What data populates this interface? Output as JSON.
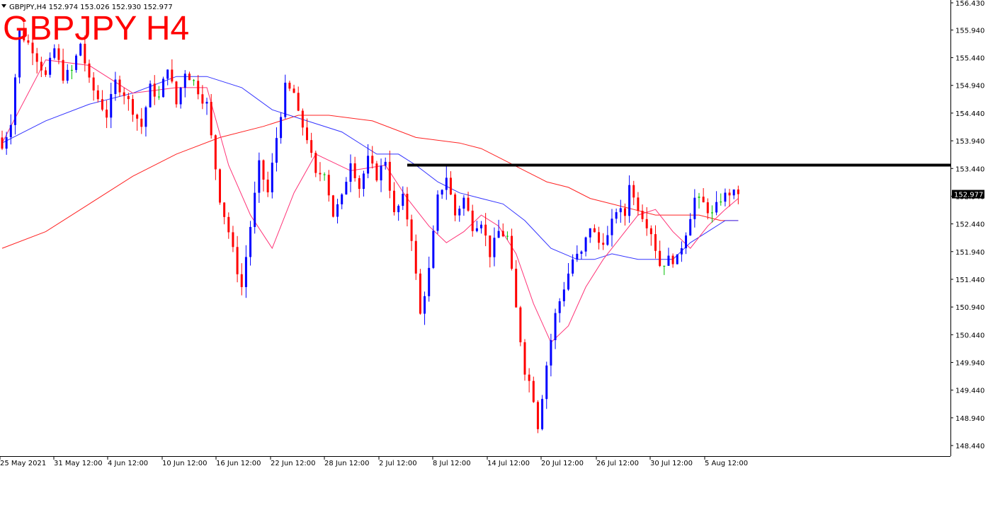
{
  "header": {
    "info_line": "GBPJPY,H4  152.974 153.026 152.930 152.977",
    "big_title": "GBPJPY H4"
  },
  "chart_data": {
    "type": "candlestick",
    "symbol": "GBPJPY",
    "timeframe": "H4",
    "ohlc_header": {
      "open": 152.974,
      "high": 153.026,
      "low": 152.93,
      "close": 152.977
    },
    "current_price": "152.977",
    "ylim": [
      148.3,
      156.43
    ],
    "y_ticks": [
      "156.430",
      "155.940",
      "155.440",
      "154.940",
      "154.440",
      "153.940",
      "153.440",
      "152.940",
      "152.440",
      "151.940",
      "151.440",
      "150.940",
      "150.440",
      "149.940",
      "149.440",
      "148.940",
      "148.440"
    ],
    "x_ticks": [
      "25 May 2021",
      "31 May 12:00",
      "4 Jun 12:00",
      "10 Jun 12:00",
      "16 Jun 12:00",
      "22 Jun 12:00",
      "28 Jun 12:00",
      "2 Jul 12:00",
      "8 Jul 12:00",
      "14 Jul 12:00",
      "20 Jul 12:00",
      "26 Jul 12:00",
      "30 Jul 12:00",
      "5 Aug 12:00"
    ],
    "resistance_level": 153.5,
    "colors": {
      "bull": "#0000ff",
      "bear": "#ff0000",
      "doji": "#00c000",
      "ma_fast": "#ff3377",
      "ma_mid": "#3333ff",
      "ma_slow": "#ff2222",
      "level": "#000000"
    },
    "price_path": [
      [
        0,
        154.0
      ],
      [
        1,
        153.8
      ],
      [
        3,
        154.3
      ],
      [
        5,
        155.9
      ],
      [
        8,
        155.6
      ],
      [
        11,
        155.1
      ],
      [
        13,
        155.6
      ],
      [
        15,
        155.1
      ],
      [
        17,
        155.2
      ],
      [
        19,
        155.7
      ],
      [
        21,
        155.0
      ],
      [
        23,
        154.7
      ],
      [
        25,
        154.4
      ],
      [
        27,
        155.0
      ],
      [
        29,
        154.8
      ],
      [
        31,
        154.5
      ],
      [
        33,
        154.2
      ],
      [
        35,
        154.9
      ],
      [
        37,
        154.7
      ],
      [
        39,
        155.3
      ],
      [
        41,
        154.6
      ],
      [
        43,
        155.2
      ],
      [
        45,
        155.0
      ],
      [
        47,
        154.7
      ],
      [
        48,
        154.6
      ],
      [
        49,
        154.0
      ],
      [
        51,
        152.9
      ],
      [
        53,
        152.3
      ],
      [
        55,
        151.6
      ],
      [
        56,
        151.3
      ],
      [
        58,
        152.4
      ],
      [
        60,
        153.5
      ],
      [
        62,
        153.0
      ],
      [
        64,
        154.0
      ],
      [
        66,
        154.9
      ],
      [
        68,
        154.8
      ],
      [
        69,
        154.4
      ],
      [
        71,
        154.0
      ],
      [
        73,
        153.3
      ],
      [
        75,
        153.4
      ],
      [
        77,
        152.6
      ],
      [
        79,
        152.9
      ],
      [
        81,
        153.6
      ],
      [
        83,
        153.1
      ],
      [
        85,
        153.6
      ],
      [
        87,
        153.3
      ],
      [
        89,
        153.6
      ],
      [
        91,
        152.6
      ],
      [
        93,
        152.9
      ],
      [
        95,
        152.2
      ],
      [
        97,
        150.8
      ],
      [
        99,
        151.6
      ],
      [
        101,
        152.9
      ],
      [
        103,
        153.3
      ],
      [
        105,
        152.6
      ],
      [
        107,
        152.9
      ],
      [
        109,
        152.4
      ],
      [
        111,
        152.5
      ],
      [
        113,
        151.9
      ],
      [
        115,
        152.3
      ],
      [
        117,
        152.2
      ],
      [
        119,
        150.9
      ],
      [
        121,
        149.8
      ],
      [
        122,
        149.6
      ],
      [
        123,
        149.3
      ],
      [
        124,
        148.8
      ],
      [
        126,
        149.9
      ],
      [
        128,
        150.8
      ],
      [
        130,
        151.3
      ],
      [
        132,
        151.8
      ],
      [
        134,
        151.9
      ],
      [
        136,
        152.4
      ],
      [
        138,
        152.1
      ],
      [
        140,
        152.2
      ],
      [
        142,
        152.7
      ],
      [
        144,
        152.6
      ],
      [
        145,
        153.2
      ],
      [
        146,
        152.9
      ],
      [
        148,
        152.6
      ],
      [
        150,
        152.3
      ],
      [
        152,
        151.7
      ],
      [
        154,
        151.8
      ],
      [
        156,
        151.8
      ],
      [
        158,
        152.3
      ],
      [
        160,
        152.9
      ],
      [
        162,
        152.8
      ],
      [
        164,
        152.6
      ],
      [
        166,
        152.9
      ],
      [
        168,
        153.0
      ],
      [
        169,
        152.98
      ]
    ],
    "candles_total": 170,
    "ma_fast": [
      [
        0,
        153.9
      ],
      [
        10,
        155.4
      ],
      [
        20,
        155.3
      ],
      [
        30,
        154.8
      ],
      [
        40,
        154.9
      ],
      [
        47,
        154.9
      ],
      [
        52,
        153.5
      ],
      [
        57,
        152.6
      ],
      [
        62,
        152.0
      ],
      [
        67,
        153.0
      ],
      [
        72,
        153.7
      ],
      [
        80,
        153.4
      ],
      [
        88,
        153.5
      ],
      [
        93,
        152.9
      ],
      [
        98,
        152.4
      ],
      [
        102,
        152.1
      ],
      [
        106,
        152.3
      ],
      [
        110,
        152.6
      ],
      [
        114,
        152.4
      ],
      [
        118,
        151.9
      ],
      [
        122,
        151.0
      ],
      [
        126,
        150.3
      ],
      [
        130,
        150.6
      ],
      [
        134,
        151.3
      ],
      [
        138,
        151.8
      ],
      [
        142,
        152.2
      ],
      [
        146,
        152.6
      ],
      [
        150,
        152.7
      ],
      [
        154,
        152.3
      ],
      [
        158,
        152.0
      ],
      [
        162,
        152.4
      ],
      [
        166,
        152.7
      ],
      [
        169,
        152.9
      ]
    ],
    "ma_mid": [
      [
        0,
        153.9
      ],
      [
        10,
        154.3
      ],
      [
        20,
        154.6
      ],
      [
        30,
        154.8
      ],
      [
        40,
        155.1
      ],
      [
        47,
        155.1
      ],
      [
        55,
        154.9
      ],
      [
        62,
        154.5
      ],
      [
        70,
        154.3
      ],
      [
        78,
        154.1
      ],
      [
        86,
        153.7
      ],
      [
        91,
        153.7
      ],
      [
        95,
        153.5
      ],
      [
        100,
        153.2
      ],
      [
        105,
        153.0
      ],
      [
        110,
        152.9
      ],
      [
        115,
        152.8
      ],
      [
        120,
        152.5
      ],
      [
        126,
        152.0
      ],
      [
        132,
        151.8
      ],
      [
        136,
        151.8
      ],
      [
        140,
        151.9
      ],
      [
        146,
        151.8
      ],
      [
        150,
        151.8
      ],
      [
        154,
        151.8
      ],
      [
        158,
        152.1
      ],
      [
        162,
        152.3
      ],
      [
        166,
        152.5
      ],
      [
        169,
        152.5
      ]
    ],
    "ma_slow": [
      [
        0,
        152.0
      ],
      [
        10,
        152.3
      ],
      [
        20,
        152.8
      ],
      [
        30,
        153.3
      ],
      [
        40,
        153.7
      ],
      [
        50,
        154.0
      ],
      [
        60,
        154.2
      ],
      [
        68,
        154.4
      ],
      [
        75,
        154.4
      ],
      [
        85,
        154.3
      ],
      [
        95,
        154.0
      ],
      [
        105,
        153.9
      ],
      [
        110,
        153.8
      ],
      [
        115,
        153.6
      ],
      [
        120,
        153.4
      ],
      [
        125,
        153.2
      ],
      [
        130,
        153.1
      ],
      [
        135,
        152.9
      ],
      [
        140,
        152.8
      ],
      [
        145,
        152.7
      ],
      [
        150,
        152.6
      ],
      [
        155,
        152.6
      ],
      [
        160,
        152.6
      ],
      [
        165,
        152.5
      ],
      [
        169,
        152.5
      ]
    ]
  }
}
